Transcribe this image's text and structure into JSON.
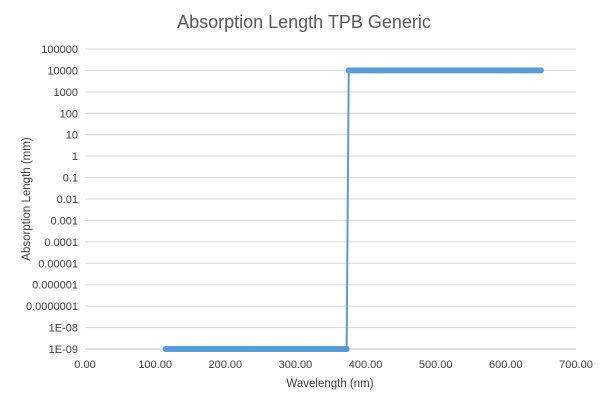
{
  "chart_data": {
    "type": "scatter",
    "title": "Absorption Length TPB Generic",
    "xlabel": "Wavelength (nm)",
    "ylabel": "Absorption Length  (mm)",
    "x_ticks": [
      "0.00",
      "100.00",
      "200.00",
      "300.00",
      "400.00",
      "500.00",
      "600.00",
      "700.00"
    ],
    "y_ticks": [
      "100000",
      "10000",
      "1000",
      "100",
      "10",
      "1",
      "0.1",
      "0.01",
      "0.001",
      "0.0001",
      "0.00001",
      "0.000001",
      "0.0000001",
      "1E-08",
      "1E-09"
    ],
    "xlim": [
      0,
      700
    ],
    "ylim": [
      1e-09,
      100000
    ],
    "y_scale": "log",
    "grid": "horizontal",
    "series_color": "#5B9BD5",
    "series": [
      {
        "segments": [
          {
            "x_start": 115,
            "x_end": 374,
            "step": 2,
            "y": 1e-09
          },
          {
            "x_start": 376,
            "x_end": 650,
            "step": 2,
            "y": 10000
          }
        ]
      }
    ]
  }
}
